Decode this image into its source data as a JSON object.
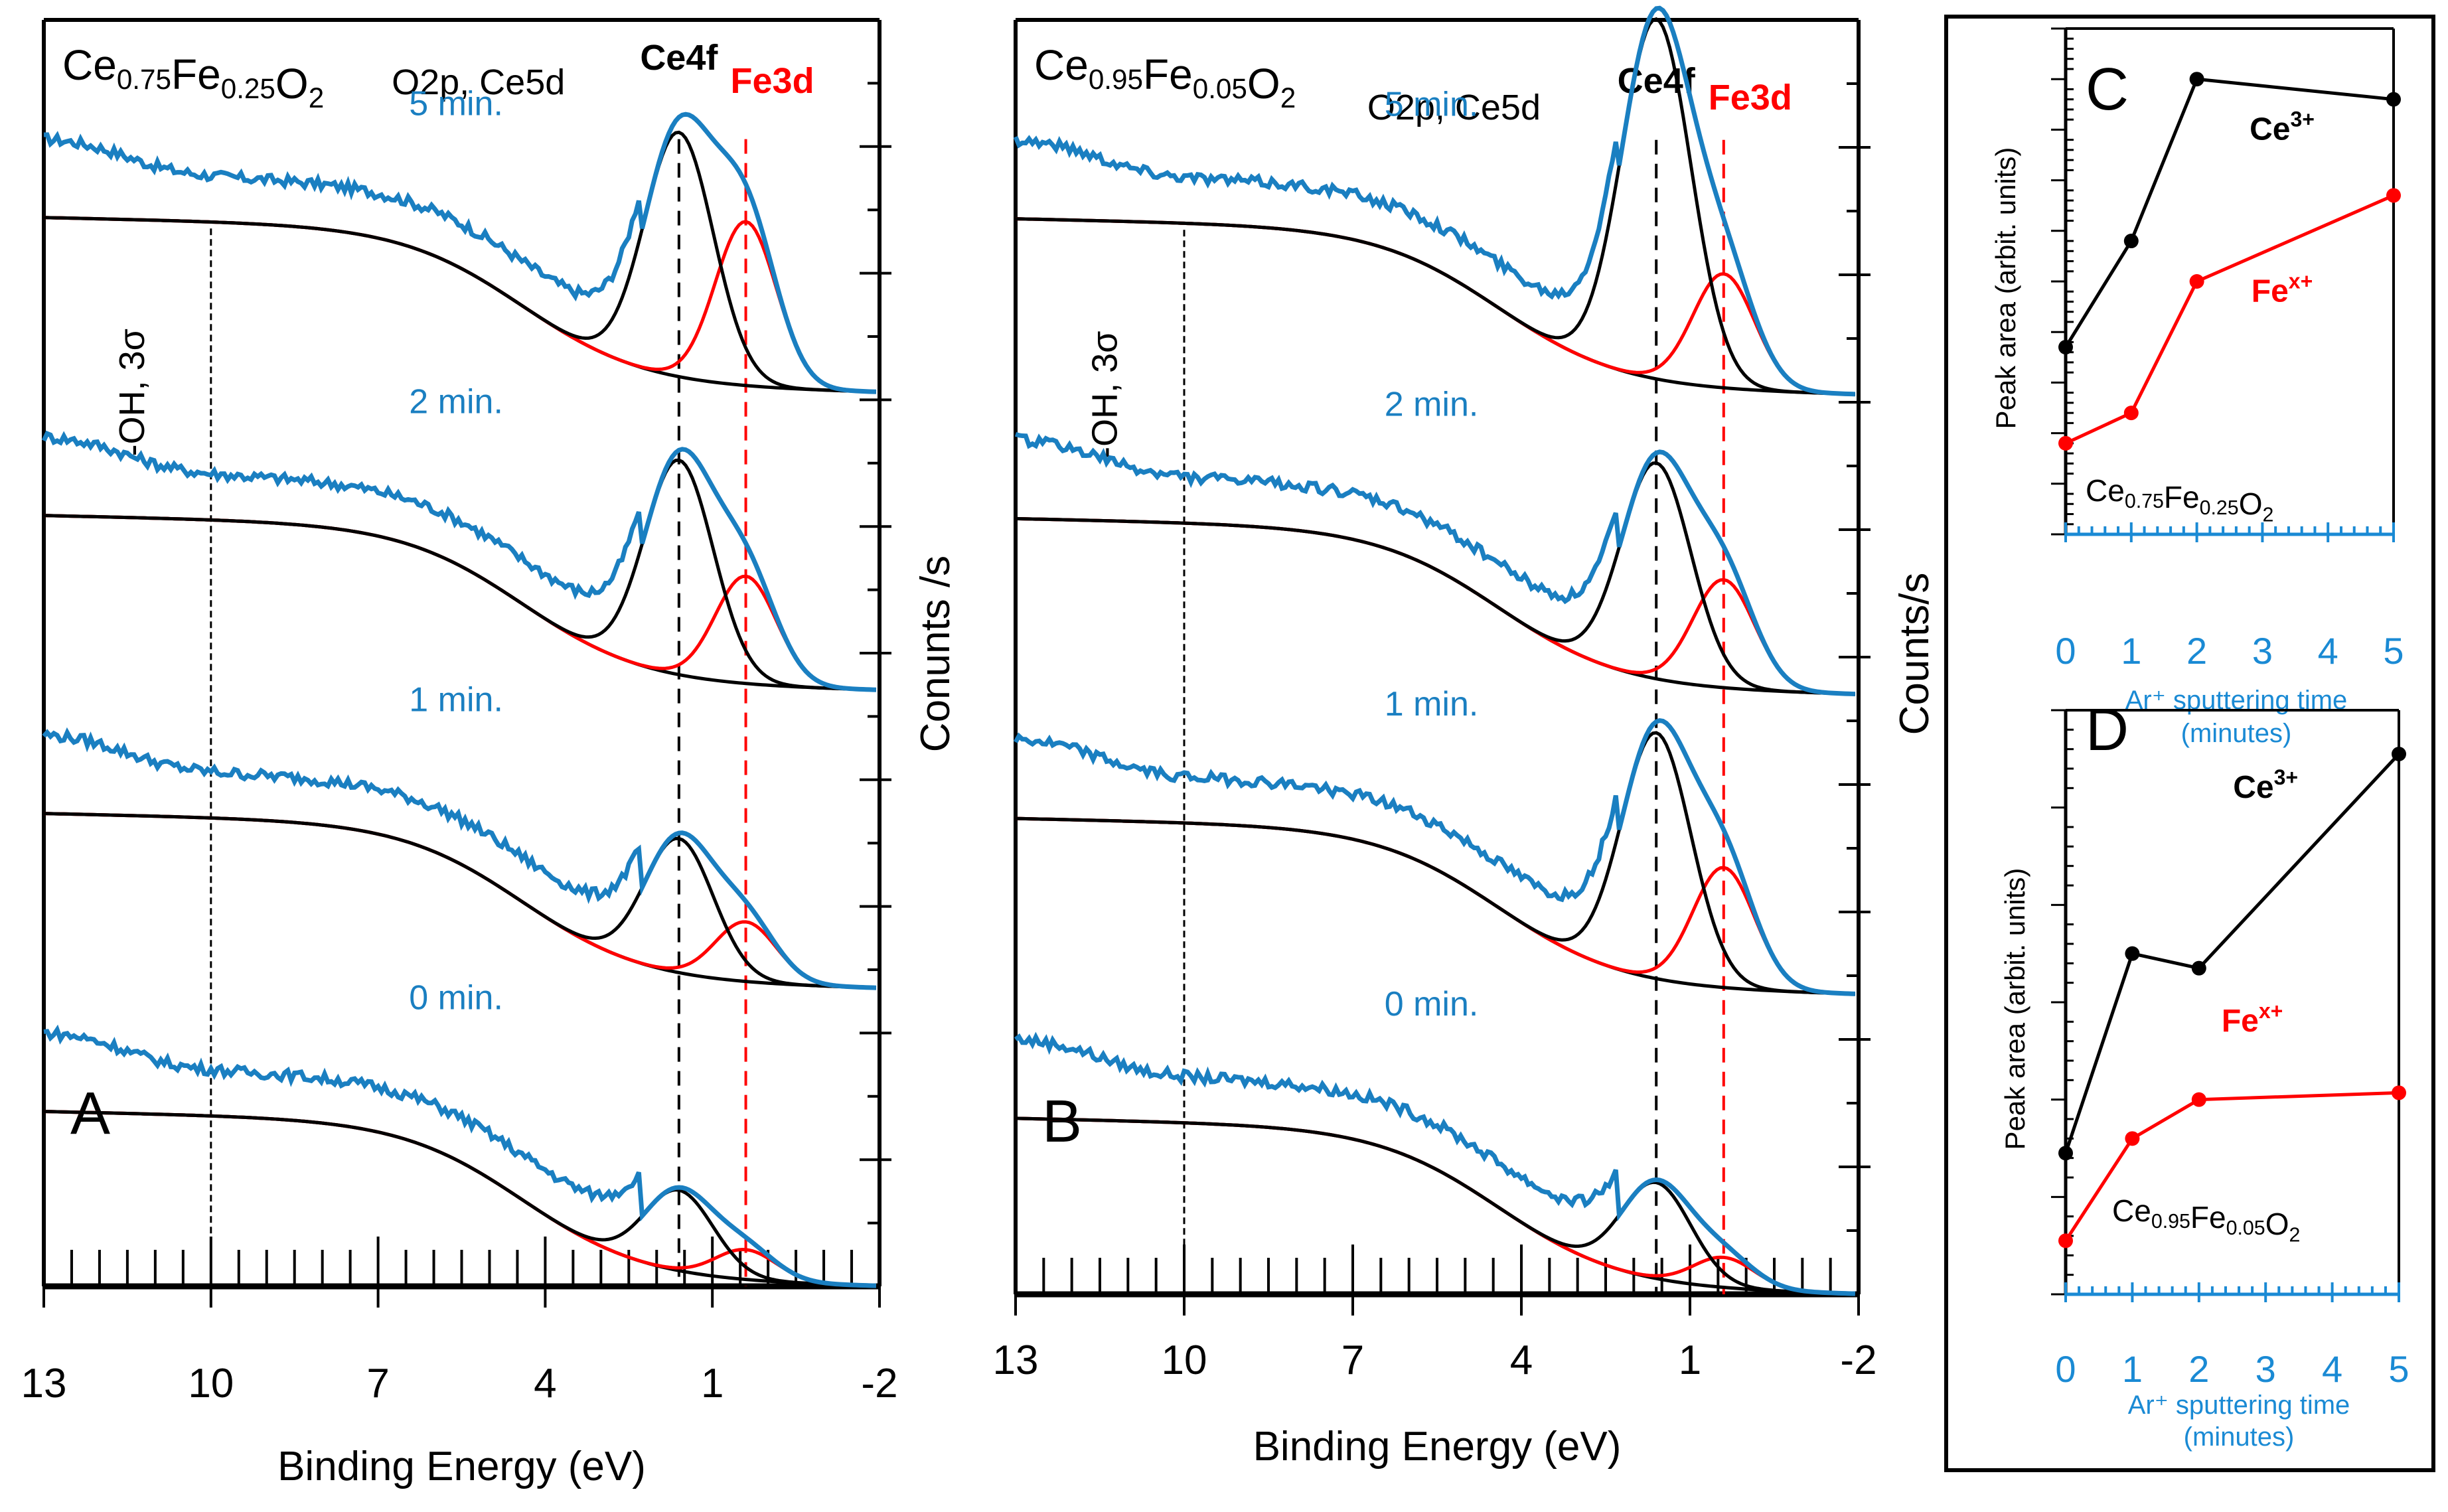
{
  "chart_data": [
    {
      "id": "A",
      "type": "line",
      "panel_label": "A",
      "sample": {
        "base": "Ce",
        "sub1": "0.75",
        "mid": "Fe",
        "sub2": "0.25",
        "end": "O",
        "sub3": "2"
      },
      "xlabel": "Binding Energy (eV)",
      "ylabel": "Conunts /s",
      "xlim": [
        13,
        -2
      ],
      "x_ticks": [
        13,
        10,
        7,
        4,
        1,
        -2
      ],
      "annotations": {
        "valence": "O2p, Ce5d",
        "ce4f": "Ce4f",
        "fe3d": "Fe3d",
        "oh": "-OH, 3σ"
      },
      "ref_lines_eV": {
        "oh": 10,
        "ce4f": 1.6,
        "fe3d": 0.4
      },
      "spectra": [
        {
          "label": "5 min.",
          "offset": 3,
          "valence_height": 1.45,
          "baseline_start": 0.0,
          "ce4f_height": 0.82,
          "fe3d_height": 0.55
        },
        {
          "label": "2 min.",
          "offset": 2,
          "valence_height": 1.45,
          "baseline_start": 0.0,
          "ce4f_height": 0.72,
          "fe3d_height": 0.36
        },
        {
          "label": "1 min.",
          "offset": 1,
          "valence_height": 1.45,
          "baseline_start": 0.0,
          "ce4f_height": 0.45,
          "fe3d_height": 0.2
        },
        {
          "label": "0 min.",
          "offset": 0,
          "valence_height": 1.45,
          "baseline_start": 0.0,
          "ce4f_height": 0.27,
          "fe3d_height": 0.1
        }
      ],
      "colors": {
        "measured": "#1a7fc1",
        "ce4f_fit": "#000000",
        "fe3d_fit": "#ff0000",
        "ce4f_line": "#000000",
        "fe3d_line": "#ff0000"
      }
    },
    {
      "id": "B",
      "type": "line",
      "panel_label": "B",
      "sample": {
        "base": "Ce",
        "sub1": "0.95",
        "mid": "Fe",
        "sub2": "0.05",
        "end": "O",
        "sub3": "2"
      },
      "xlabel": "Binding Energy (eV)",
      "ylabel": "Counts/s",
      "xlim": [
        13,
        -2
      ],
      "x_ticks": [
        13,
        10,
        7,
        4,
        1,
        -2
      ],
      "annotations": {
        "valence": "O2p, Ce5d",
        "ce4f": "Ce4f",
        "fe3d": "Fe3d",
        "oh": "-OH, 3σ"
      },
      "ref_lines_eV": {
        "oh": 10,
        "ce4f": 1.6,
        "fe3d": 0.4
      },
      "spectra": [
        {
          "label": "5 min.",
          "offset": 3,
          "valence_height": 1.45,
          "ce4f_height": 1.2,
          "fe3d_height": 0.38
        },
        {
          "label": "2 min.",
          "offset": 2,
          "valence_height": 1.3,
          "ce4f_height": 0.72,
          "fe3d_height": 0.36
        },
        {
          "label": "1 min.",
          "offset": 1,
          "valence_height": 1.45,
          "ce4f_height": 0.82,
          "fe3d_height": 0.4
        },
        {
          "label": "0 min.",
          "offset": 0,
          "valence_height": 1.45,
          "ce4f_height": 0.32,
          "fe3d_height": 0.1
        }
      ],
      "colors": {
        "measured": "#1a7fc1",
        "ce4f_fit": "#000000",
        "fe3d_fit": "#ff0000"
      }
    },
    {
      "id": "C",
      "type": "line",
      "panel_label": "C",
      "sample": {
        "base": "Ce",
        "sub1": "0.75",
        "mid": "Fe",
        "sub2": "0.25",
        "end": "O",
        "sub3": "2"
      },
      "xlabel_line1": "Ar⁺ sputtering time",
      "xlabel_line2": "(minutes)",
      "ylabel": "Peak area (arbit. units)",
      "x_ticks": [
        0,
        1,
        2,
        3,
        4,
        5
      ],
      "xlim": [
        0,
        5
      ],
      "ylim": [
        0,
        10
      ],
      "series": [
        {
          "name": "Ce",
          "sup": "3+",
          "color": "#000000",
          "x": [
            0,
            1,
            2,
            5
          ],
          "y": [
            3.7,
            5.8,
            9.0,
            8.6
          ]
        },
        {
          "name": "Fe",
          "sup": "x+",
          "color": "#ff0000",
          "x": [
            0,
            1,
            2,
            5
          ],
          "y": [
            1.8,
            2.4,
            5.0,
            6.7
          ]
        }
      ]
    },
    {
      "id": "D",
      "type": "line",
      "panel_label": "D",
      "sample": {
        "base": "Ce",
        "sub1": "0.95",
        "mid": "Fe",
        "sub2": "0.05",
        "end": "O",
        "sub3": "2"
      },
      "xlabel_line1": "Ar⁺ sputtering time",
      "xlabel_line2": "(minutes)",
      "ylabel": "Peak area (arbit. units)",
      "x_ticks": [
        0,
        1,
        2,
        3,
        4,
        5
      ],
      "xlim": [
        0,
        5
      ],
      "ylim": [
        0,
        6
      ],
      "series": [
        {
          "name": "Ce",
          "sup": "3+",
          "color": "#000000",
          "x": [
            0,
            1,
            2,
            5
          ],
          "y": [
            1.45,
            3.5,
            3.35,
            5.55
          ]
        },
        {
          "name": "Fe",
          "sup": "x+",
          "color": "#ff0000",
          "x": [
            0,
            1,
            2,
            5
          ],
          "y": [
            0.55,
            1.6,
            2.0,
            2.07
          ]
        }
      ]
    }
  ]
}
